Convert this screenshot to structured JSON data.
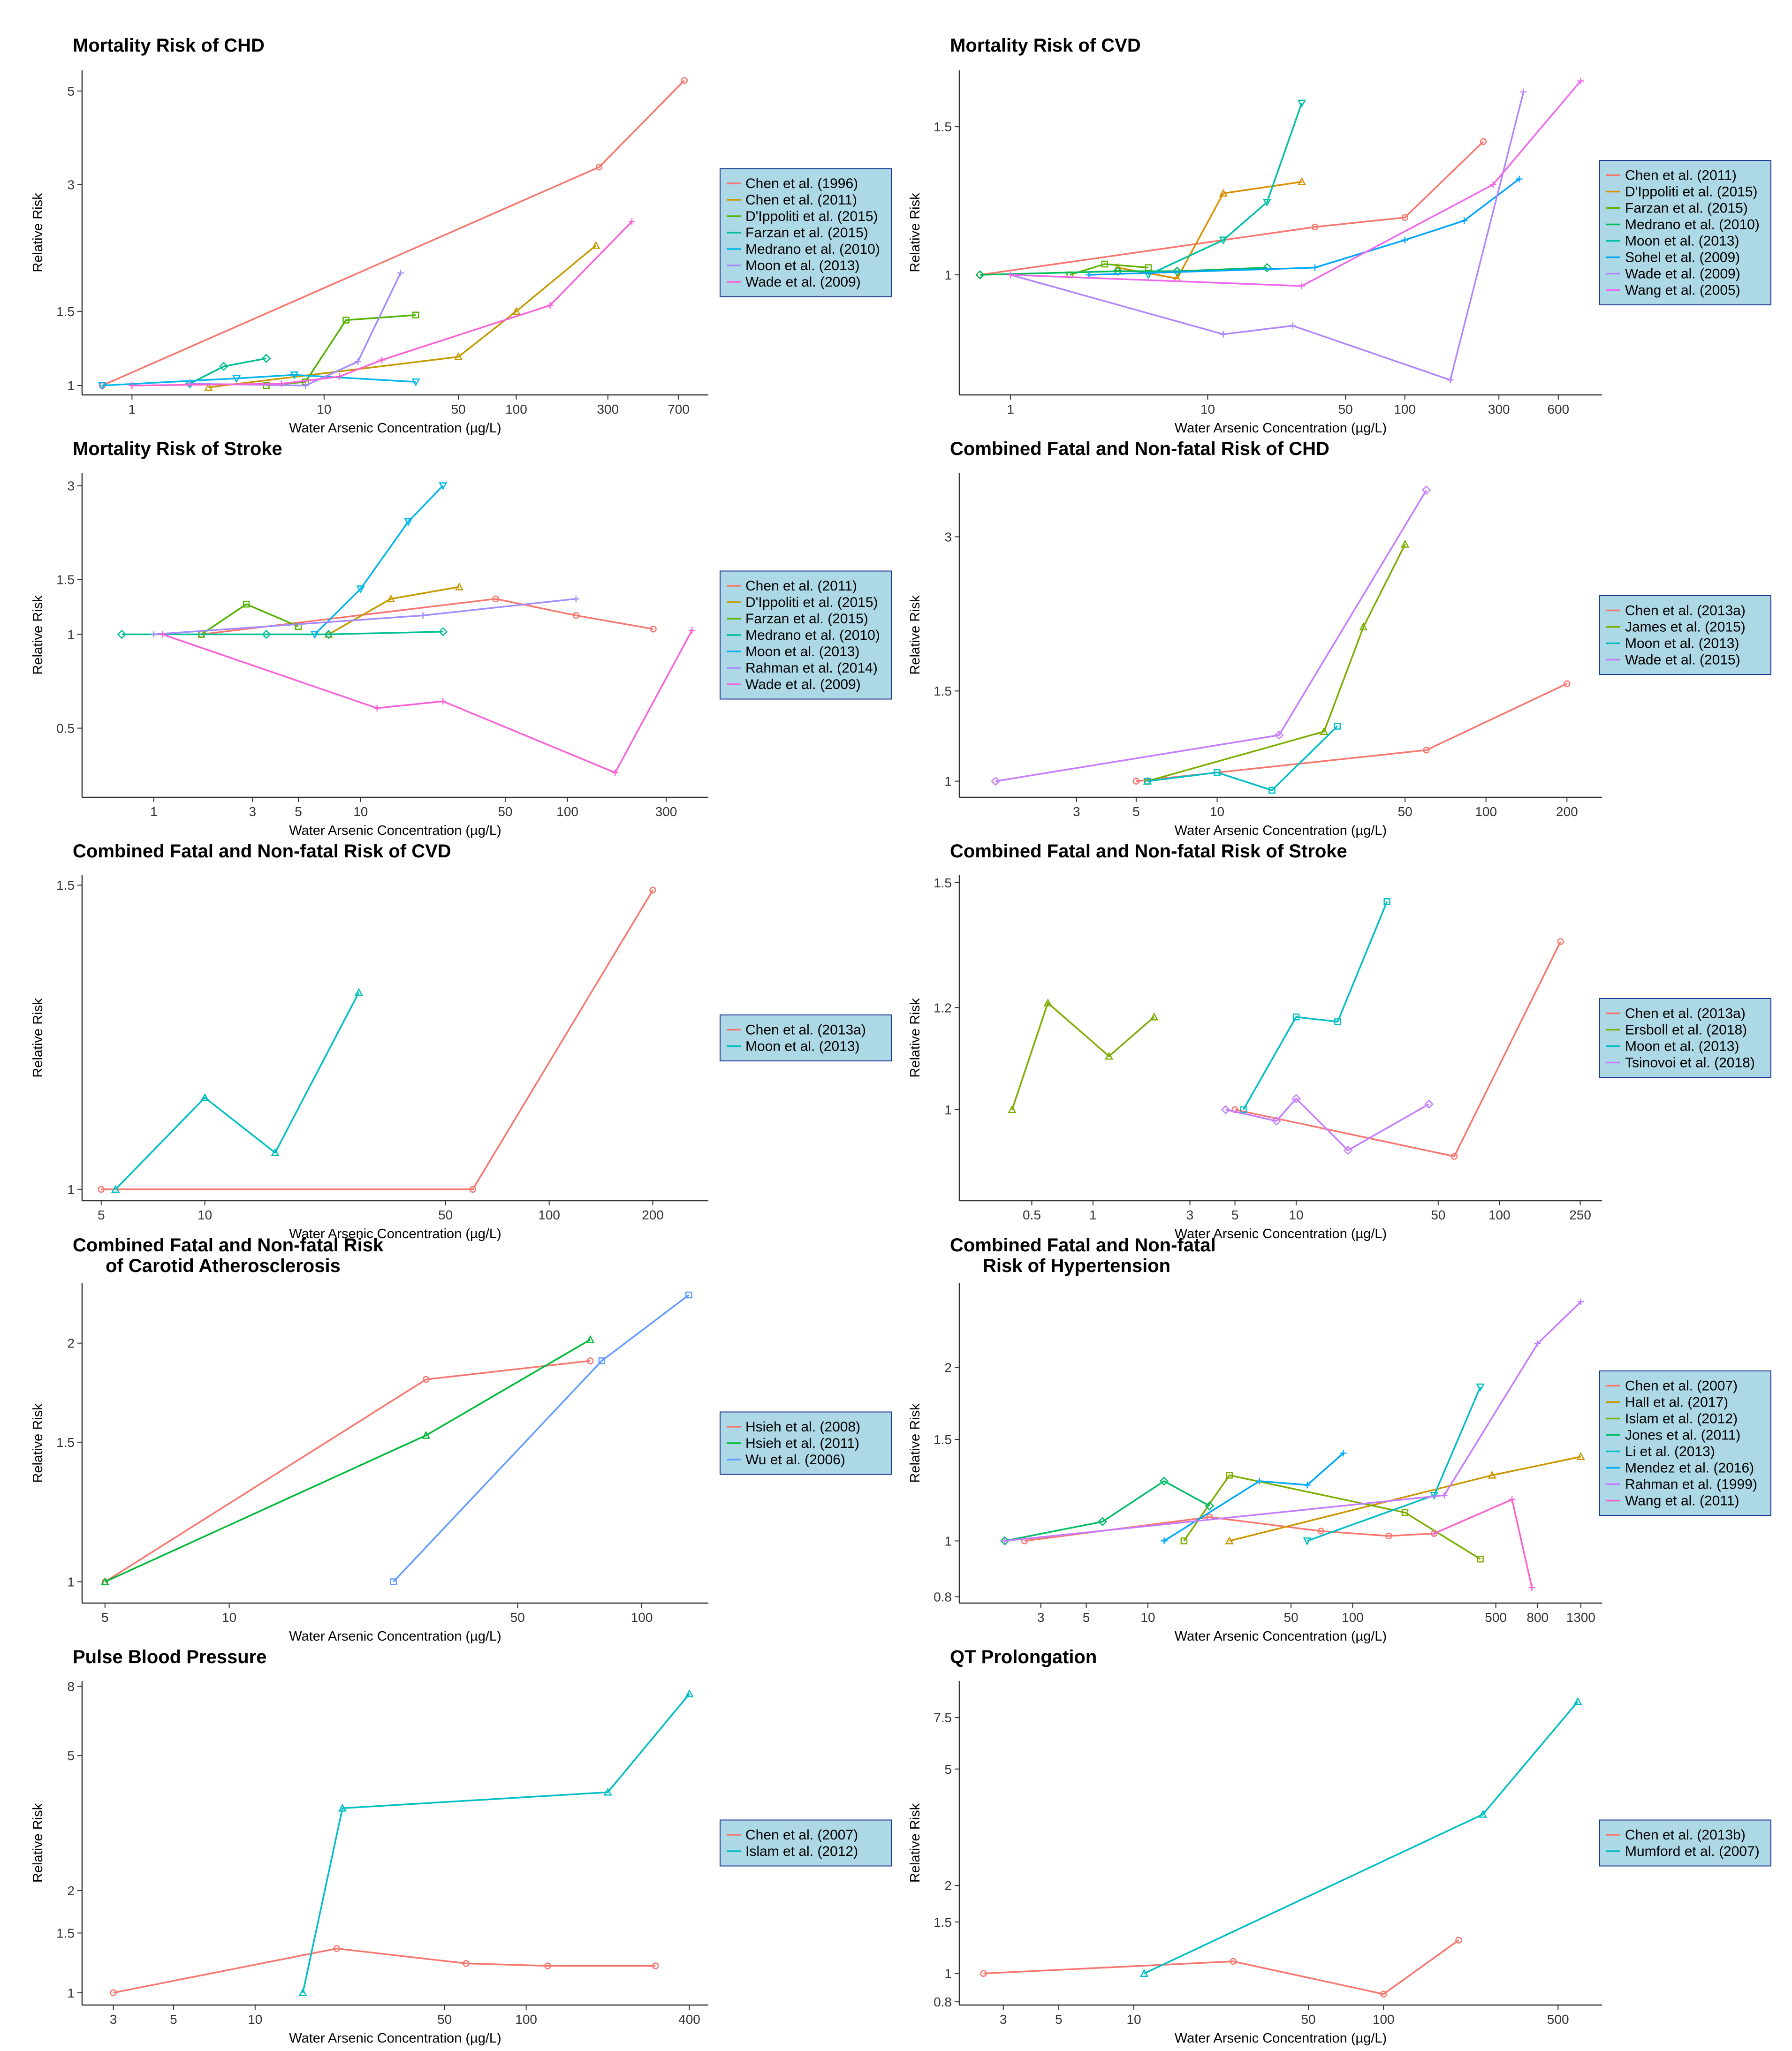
{
  "figure": {
    "xlabel": "Water Arsenic Concentration (µg/L)",
    "ylabel": "Relative Risk"
  },
  "colors": {
    "legend_bg": "#add8e6",
    "legend_border": "#1f3a93",
    "axis": "#333333"
  },
  "chart_data": [
    {
      "type": "line",
      "title": "Mortality Risk of CHD",
      "xlabel": "Water Arsenic Concentration (µg/L)",
      "ylabel": "Relative Risk",
      "x_scale": "log",
      "y_scale": "log",
      "xlim": [
        0.55,
        1000
      ],
      "ylim": [
        0.95,
        5.6
      ],
      "xticks": [
        1,
        10,
        50,
        100,
        300,
        700
      ],
      "yticks": [
        1,
        1.5,
        3,
        5
      ],
      "series": [
        {
          "name": "Chen et al. (1996)",
          "color": "#f8766d",
          "x": [
            0.7,
            270,
            750
          ],
          "y": [
            1.0,
            3.3,
            5.3
          ]
        },
        {
          "name": "Chen et al. (2011)",
          "color": "#c49a00",
          "x": [
            2.5,
            50,
            100,
            260
          ],
          "y": [
            0.99,
            1.17,
            1.5,
            2.15
          ]
        },
        {
          "name": "D'Ippoliti et al. (2015)",
          "color": "#53b400",
          "x": [
            5,
            8,
            13,
            30
          ],
          "y": [
            1.0,
            1.02,
            1.43,
            1.47
          ]
        },
        {
          "name": "Farzan et al. (2015)",
          "color": "#00c094",
          "x": [
            2.0,
            3.0,
            5.0
          ],
          "y": [
            1.01,
            1.11,
            1.16
          ]
        },
        {
          "name": "Medrano et al. (2010)",
          "color": "#00b6eb",
          "x": [
            0.7,
            3.5,
            7,
            30
          ],
          "y": [
            1.0,
            1.04,
            1.06,
            1.02
          ]
        },
        {
          "name": "Moon et al. (2013)",
          "color": "#a58aff",
          "x": [
            2.0,
            8,
            15,
            25
          ],
          "y": [
            1.01,
            1.0,
            1.14,
            1.85
          ]
        },
        {
          "name": "Wade et al. (2009)",
          "color": "#fb61d7",
          "x": [
            1.0,
            6,
            12,
            20,
            150,
            400
          ],
          "y": [
            1.0,
            1.01,
            1.05,
            1.15,
            1.55,
            2.45
          ]
        }
      ]
    },
    {
      "type": "line",
      "title": "Mortality Risk of CVD",
      "xlabel": "Water Arsenic Concentration (µg/L)",
      "ylabel": "Relative Risk",
      "x_scale": "log",
      "y_scale": "log",
      "xlim": [
        0.55,
        1000
      ],
      "ylim": [
        0.72,
        1.75
      ],
      "xticks": [
        1,
        10,
        50,
        100,
        300,
        600
      ],
      "yticks": [
        1,
        1.5
      ],
      "series": [
        {
          "name": "Chen et al. (2011)",
          "color": "#f8766d",
          "x": [
            0.7,
            35,
            100,
            250
          ],
          "y": [
            1.0,
            1.14,
            1.17,
            1.44
          ]
        },
        {
          "name": "D'Ippoliti et al. (2015)",
          "color": "#db8e00",
          "x": [
            3.5,
            7,
            12,
            30
          ],
          "y": [
            1.02,
            0.99,
            1.25,
            1.29
          ]
        },
        {
          "name": "Farzan et al. (2015)",
          "color": "#64b200",
          "x": [
            2.0,
            3.0,
            5.0
          ],
          "y": [
            1.0,
            1.03,
            1.02
          ]
        },
        {
          "name": "Medrano et al. (2010)",
          "color": "#00bd5c",
          "x": [
            0.7,
            3.5,
            7,
            20
          ],
          "y": [
            1.0,
            1.01,
            1.01,
            1.02
          ]
        },
        {
          "name": "Moon et al. (2013)",
          "color": "#00c1a7",
          "x": [
            5,
            12,
            20,
            30
          ],
          "y": [
            1.0,
            1.1,
            1.22,
            1.6
          ]
        },
        {
          "name": "Sohel et al. (2009)",
          "color": "#00a6ff",
          "x": [
            2.5,
            35,
            100,
            200,
            380
          ],
          "y": [
            1.0,
            1.02,
            1.1,
            1.16,
            1.3
          ]
        },
        {
          "name": "Wade et al. (2009)",
          "color": "#b385ff",
          "x": [
            1.0,
            12,
            27,
            170,
            400
          ],
          "y": [
            1.0,
            0.85,
            0.87,
            0.75,
            1.65
          ]
        },
        {
          "name": "Wang et al. (2005)",
          "color": "#ef67eb",
          "x": [
            1.0,
            30,
            280,
            780
          ],
          "y": [
            1.0,
            0.97,
            1.28,
            1.7
          ]
        }
      ]
    },
    {
      "type": "line",
      "title": "Mortality Risk of Stroke",
      "xlabel": "Water Arsenic Concentration (µg/L)",
      "ylabel": "Relative Risk",
      "x_scale": "log",
      "y_scale": "log",
      "xlim": [
        0.45,
        480
      ],
      "ylim": [
        0.3,
        3.3
      ],
      "xticks": [
        1,
        3,
        5,
        10,
        50,
        100,
        300
      ],
      "yticks": [
        0.5,
        1,
        1.5,
        3
      ],
      "series": [
        {
          "name": "Chen et al. (2011)",
          "color": "#f8766d",
          "x": [
            1.7,
            45,
            110,
            260
          ],
          "y": [
            1.0,
            1.3,
            1.15,
            1.04
          ]
        },
        {
          "name": "D'Ippoliti et al. (2015)",
          "color": "#c49a00",
          "x": [
            7,
            14,
            30
          ],
          "y": [
            1.0,
            1.3,
            1.42
          ]
        },
        {
          "name": "Farzan et al. (2015)",
          "color": "#53b400",
          "x": [
            1.7,
            2.8,
            5.0
          ],
          "y": [
            1.0,
            1.25,
            1.06
          ]
        },
        {
          "name": "Medrano et al. (2010)",
          "color": "#00c094",
          "x": [
            0.7,
            3.5,
            7,
            25
          ],
          "y": [
            1.0,
            1.0,
            1.0,
            1.02
          ]
        },
        {
          "name": "Moon et al. (2013)",
          "color": "#00b6eb",
          "x": [
            6,
            10,
            17,
            25
          ],
          "y": [
            1.0,
            1.4,
            2.3,
            3.0
          ]
        },
        {
          "name": "Rahman et al. (2014)",
          "color": "#a58aff",
          "x": [
            1.0,
            20,
            110
          ],
          "y": [
            1.0,
            1.15,
            1.3
          ]
        },
        {
          "name": "Wade et al. (2009)",
          "color": "#fb61d7",
          "x": [
            1.1,
            12,
            25,
            170,
            400
          ],
          "y": [
            1.0,
            0.58,
            0.61,
            0.36,
            1.03
          ]
        }
      ]
    },
    {
      "type": "line",
      "title": "Combined Fatal and Non-fatal Risk of CHD",
      "xlabel": "Water Arsenic Concentration (µg/L)",
      "ylabel": "Relative Risk",
      "x_scale": "log",
      "y_scale": "log",
      "xlim": [
        1.1,
        270
      ],
      "ylim": [
        0.93,
        4.0
      ],
      "xticks": [
        3,
        5,
        10,
        50,
        100,
        200
      ],
      "yticks": [
        1,
        1.5,
        3
      ],
      "series": [
        {
          "name": "Chen et al. (2013a)",
          "color": "#f8766d",
          "x": [
            5,
            60,
            200
          ],
          "y": [
            1.0,
            1.15,
            1.55
          ]
        },
        {
          "name": "James et al. (2015)",
          "color": "#7cae00",
          "x": [
            5.5,
            25,
            35,
            50
          ],
          "y": [
            1.0,
            1.25,
            2.0,
            2.9
          ]
        },
        {
          "name": "Moon et al. (2013)",
          "color": "#00bfc4",
          "x": [
            5.5,
            10,
            16,
            28
          ],
          "y": [
            1.0,
            1.04,
            0.96,
            1.28
          ]
        },
        {
          "name": "Wade et al. (2015)",
          "color": "#c77cff",
          "x": [
            1.5,
            17,
            60
          ],
          "y": [
            1.0,
            1.23,
            3.7
          ]
        }
      ]
    },
    {
      "type": "line",
      "title": "Combined Fatal and Non-fatal Risk of CVD",
      "xlabel": "Water Arsenic Concentration (µg/L)",
      "ylabel": "Relative Risk",
      "x_scale": "log",
      "y_scale": "log",
      "xlim": [
        4.4,
        290
      ],
      "ylim": [
        0.985,
        1.52
      ],
      "xticks": [
        5,
        10,
        50,
        100,
        200
      ],
      "yticks": [
        1,
        1.5
      ],
      "series": [
        {
          "name": "Chen et al. (2013a)",
          "color": "#f8766d",
          "x": [
            5,
            60,
            200
          ],
          "y": [
            1.0,
            1.0,
            1.49
          ]
        },
        {
          "name": "Moon et al. (2013)",
          "color": "#00bfc4",
          "x": [
            5.5,
            10,
            16,
            28
          ],
          "y": [
            1.0,
            1.13,
            1.05,
            1.3
          ]
        }
      ]
    },
    {
      "type": "line",
      "title": "Combined Fatal and Non-fatal Risk of Stroke",
      "xlabel": "Water Arsenic Concentration (µg/L)",
      "ylabel": "Relative Risk",
      "x_scale": "log",
      "y_scale": "log",
      "xlim": [
        0.22,
        320
      ],
      "ylim": [
        0.85,
        1.52
      ],
      "xticks": [
        0.5,
        1,
        3,
        5,
        10,
        50,
        100,
        250
      ],
      "yticks": [
        1,
        1.2,
        1.5
      ],
      "series": [
        {
          "name": "Chen et al. (2013a)",
          "color": "#f8766d",
          "x": [
            5,
            60,
            200
          ],
          "y": [
            1.0,
            0.92,
            1.35
          ]
        },
        {
          "name": "Ersboll et al. (2018)",
          "color": "#7cae00",
          "x": [
            0.4,
            0.6,
            1.2,
            2.0
          ],
          "y": [
            1.0,
            1.21,
            1.1,
            1.18
          ]
        },
        {
          "name": "Moon et al. (2013)",
          "color": "#00bfc4",
          "x": [
            5.5,
            10,
            16,
            28
          ],
          "y": [
            1.0,
            1.18,
            1.17,
            1.45
          ]
        },
        {
          "name": "Tsinovoi et al. (2018)",
          "color": "#c77cff",
          "x": [
            4.5,
            8,
            10,
            18,
            45
          ],
          "y": [
            1.0,
            0.98,
            1.02,
            0.93,
            1.01
          ]
        }
      ]
    },
    {
      "type": "line",
      "title": "Combined Fatal and Non-fatal Risk\nof Carotid Atherosclerosis",
      "xlabel": "Water Arsenic Concentration (µg/L)",
      "ylabel": "Relative Risk",
      "x_scale": "log",
      "y_scale": "log",
      "xlim": [
        4.4,
        145
      ],
      "ylim": [
        0.94,
        2.38
      ],
      "xticks": [
        5,
        10,
        50,
        100
      ],
      "yticks": [
        1,
        1.5,
        2
      ],
      "series": [
        {
          "name": "Hsieh et al. (2008)",
          "color": "#f8766d",
          "x": [
            5,
            30,
            75
          ],
          "y": [
            1.0,
            1.8,
            1.9
          ]
        },
        {
          "name": "Hsieh et al. (2011)",
          "color": "#00ba38",
          "x": [
            5,
            30,
            75
          ],
          "y": [
            1.0,
            1.53,
            2.02
          ]
        },
        {
          "name": "Wu et al. (2006)",
          "color": "#619cff",
          "x": [
            25,
            80,
            130
          ],
          "y": [
            1.0,
            1.9,
            2.3
          ]
        }
      ]
    },
    {
      "type": "line",
      "title": "Combined Fatal and Non-fatal\nRisk of Hypertension",
      "xlabel": "Water Arsenic Concentration (µg/L)",
      "ylabel": "Relative Risk",
      "x_scale": "log",
      "y_scale": "log",
      "xlim": [
        1.2,
        1650
      ],
      "ylim": [
        0.78,
        2.8
      ],
      "xticks": [
        3,
        5,
        10,
        50,
        100,
        500,
        800,
        1300
      ],
      "yticks": [
        0.8,
        1,
        1.5,
        2
      ],
      "series": [
        {
          "name": "Chen et al. (2007)",
          "color": "#f8766d",
          "x": [
            2.5,
            20,
            70,
            150,
            250
          ],
          "y": [
            1.0,
            1.1,
            1.04,
            1.02,
            1.03
          ]
        },
        {
          "name": "Hall et al. (2017)",
          "color": "#cd9600",
          "x": [
            25,
            480,
            1300
          ],
          "y": [
            1.0,
            1.3,
            1.4
          ]
        },
        {
          "name": "Islam et al. (2012)",
          "color": "#7cae00",
          "x": [
            15,
            25,
            180,
            420
          ],
          "y": [
            1.0,
            1.3,
            1.12,
            0.93
          ]
        },
        {
          "name": "Jones et al. (2011)",
          "color": "#00be67",
          "x": [
            2.0,
            6,
            12,
            20
          ],
          "y": [
            1.0,
            1.08,
            1.27,
            1.15
          ]
        },
        {
          "name": "Li et al. (2013)",
          "color": "#00bfc4",
          "x": [
            60,
            250,
            420
          ],
          "y": [
            1.0,
            1.2,
            1.85
          ]
        },
        {
          "name": "Mendez et al. (2016)",
          "color": "#00a9ff",
          "x": [
            12,
            35,
            60,
            90
          ],
          "y": [
            1.0,
            1.27,
            1.25,
            1.42
          ]
        },
        {
          "name": "Rahman et al. (1999)",
          "color": "#c77cff",
          "x": [
            2.0,
            280,
            800,
            1300
          ],
          "y": [
            1.0,
            1.2,
            2.2,
            2.6
          ]
        },
        {
          "name": "Wang et al. (2011)",
          "color": "#ff61cc",
          "x": [
            250,
            600,
            750
          ],
          "y": [
            1.03,
            1.18,
            0.83
          ]
        }
      ]
    },
    {
      "type": "line",
      "title": "Pulse Blood Pressure",
      "xlabel": "Water Arsenic Concentration (µg/L)",
      "ylabel": "Relative Risk",
      "x_scale": "log",
      "y_scale": "log",
      "xlim": [
        2.3,
        470
      ],
      "ylim": [
        0.92,
        8.3
      ],
      "xticks": [
        3,
        5,
        10,
        50,
        100,
        400
      ],
      "yticks": [
        1,
        1.5,
        2,
        5,
        8
      ],
      "series": [
        {
          "name": "Chen et al. (2007)",
          "color": "#f8766d",
          "x": [
            3,
            20,
            60,
            120,
            300
          ],
          "y": [
            1.0,
            1.35,
            1.22,
            1.2,
            1.2
          ]
        },
        {
          "name": "Islam et al. (2012)",
          "color": "#00bfc4",
          "x": [
            15,
            21,
            200,
            400
          ],
          "y": [
            1.0,
            3.5,
            3.9,
            7.6
          ]
        }
      ]
    },
    {
      "type": "line",
      "title": "QT Prolongation",
      "xlabel": "Water Arsenic Concentration (µg/L)",
      "ylabel": "Relative Risk",
      "x_scale": "log",
      "y_scale": "log",
      "xlim": [
        2.0,
        750
      ],
      "ylim": [
        0.78,
        10.0
      ],
      "xticks": [
        3,
        5,
        10,
        50,
        100,
        500
      ],
      "yticks": [
        0.8,
        1,
        1.5,
        2,
        5,
        7.5
      ],
      "series": [
        {
          "name": "Chen et al. (2013b)",
          "color": "#f8766d",
          "x": [
            2.5,
            25,
            100,
            200
          ],
          "y": [
            1.0,
            1.1,
            0.85,
            1.3
          ]
        },
        {
          "name": "Mumford et al. (2007)",
          "color": "#00bfc4",
          "x": [
            11,
            250,
            600
          ],
          "y": [
            1.0,
            3.5,
            8.5
          ]
        }
      ]
    }
  ]
}
